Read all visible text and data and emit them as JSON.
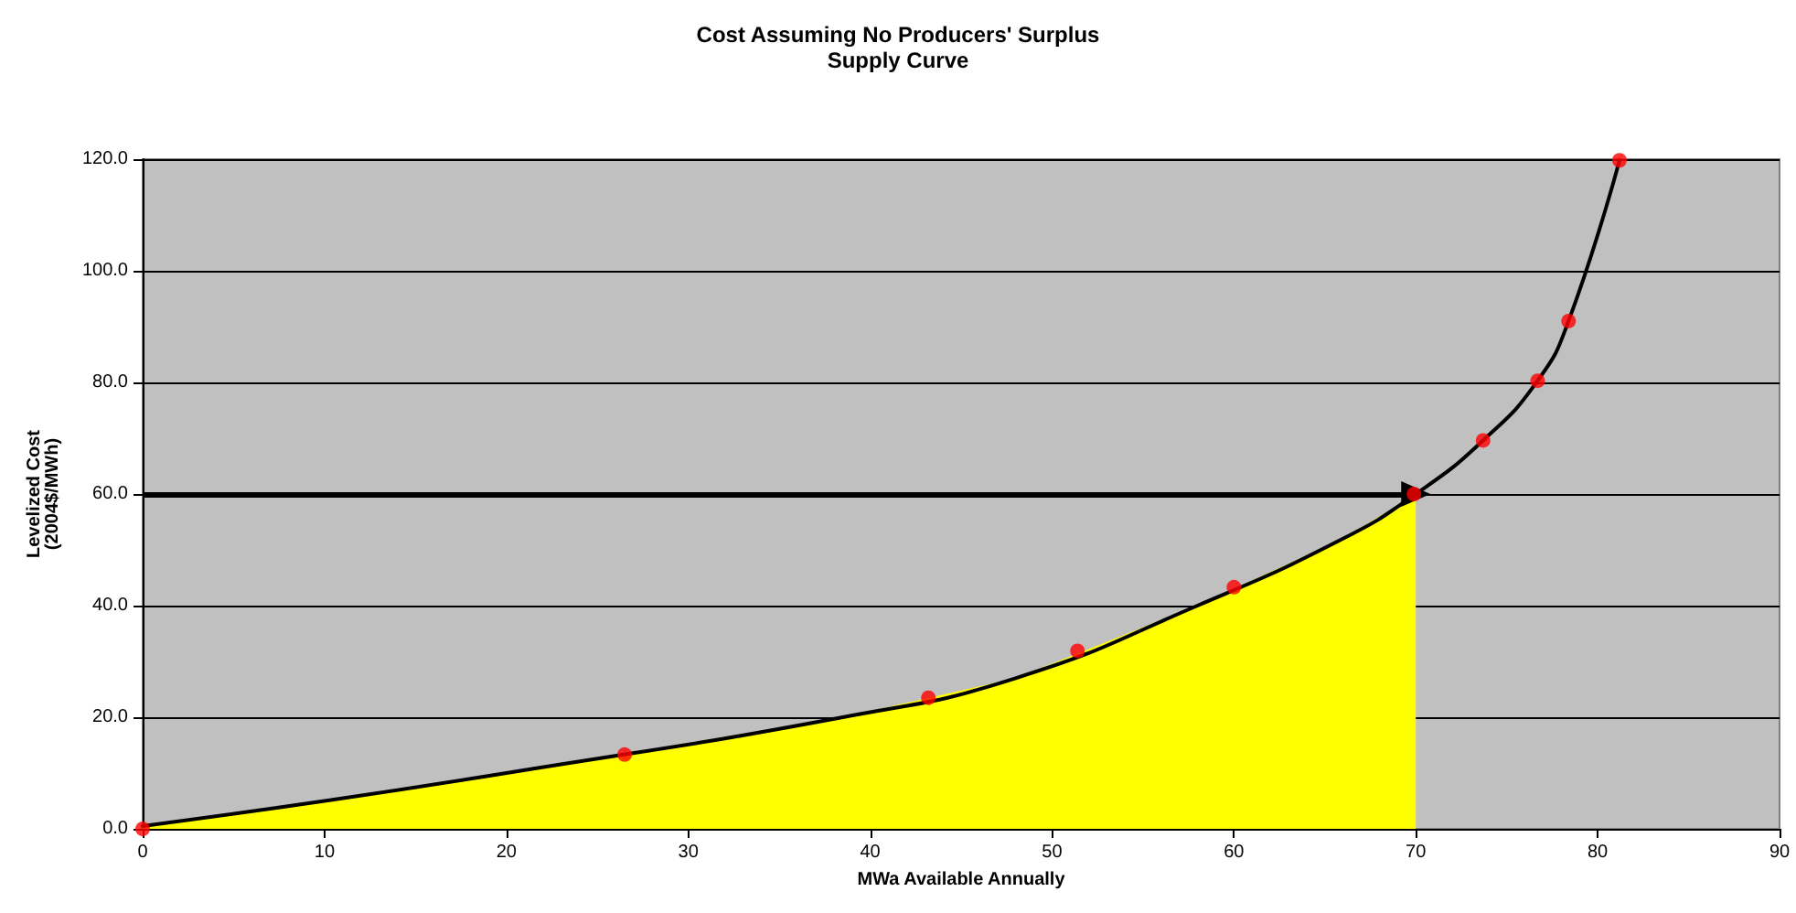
{
  "chart_data": {
    "type": "line",
    "title": "Cost Assuming No Producers' Surplus",
    "subtitle": "Supply Curve",
    "xlabel": "MWa Available Annually",
    "ylabel": "Levelized Cost\n(2004$/MWh)",
    "xlim": [
      0,
      90
    ],
    "xticks": [
      0,
      10,
      20,
      30,
      40,
      50,
      60,
      70,
      80,
      90
    ],
    "ylim": [
      0,
      120
    ],
    "yticks": [
      {
        "value": 0,
        "label": "0.0"
      },
      {
        "value": 20,
        "label": "20.0"
      },
      {
        "value": 40,
        "label": "40.0"
      },
      {
        "value": 60,
        "label": "60.0"
      },
      {
        "value": 80,
        "label": "80.0"
      },
      {
        "value": 100,
        "label": "100.0"
      },
      {
        "value": 120,
        "label": "120.0"
      }
    ],
    "grid": "y",
    "ref_lines": [
      {
        "axis": "y",
        "value": 60,
        "color": "#000000"
      }
    ],
    "series": [
      {
        "type": "area",
        "color": "#ffff00",
        "x": [
          0,
          10,
          20,
          38.5,
          48,
          58,
          66,
          70
        ],
        "values": [
          0.5,
          5,
          10,
          20,
          27,
          40,
          52,
          60
        ]
      },
      {
        "color": "#000000",
        "marker": "none",
        "line_style": "solid",
        "x": [
          0,
          10,
          20,
          38.5,
          48,
          58,
          66,
          70,
          73.7,
          76.7,
          78.4,
          81.2
        ],
        "values": [
          0.5,
          5,
          10,
          20,
          27,
          40,
          52,
          60,
          69.6,
          80.3,
          91,
          119.8
        ]
      },
      {
        "type": "scatter",
        "color": "#ff0000",
        "marker": "circle",
        "x": [
          0,
          26.5,
          43.2,
          51.4,
          60,
          69.9,
          73.7,
          76.7,
          78.4,
          81.2
        ],
        "values": [
          0,
          13.3,
          23.5,
          31.9,
          43.3,
          60,
          69.6,
          80.3,
          91,
          119.8
        ]
      }
    ]
  }
}
